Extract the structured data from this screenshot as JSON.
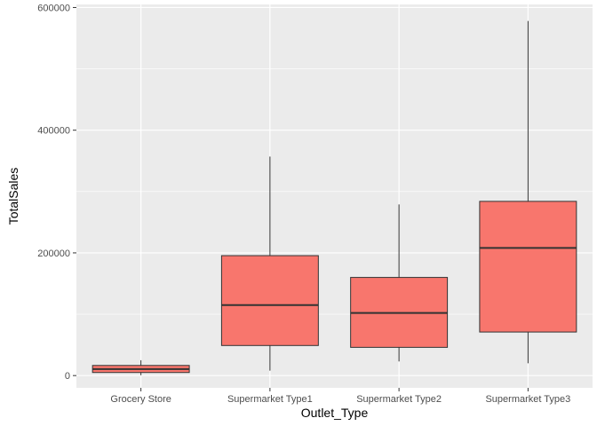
{
  "chart_data": {
    "type": "boxplot",
    "title": "",
    "xlabel": "Outlet_Type",
    "ylabel": "TotalSales",
    "ylim": [
      -20000,
      605000
    ],
    "yticks": [
      0,
      200000,
      400000,
      600000
    ],
    "ytick_labels": [
      "0",
      "200000",
      "400000",
      "600000"
    ],
    "grid": true,
    "categories": [
      "Grocery Store",
      "Supermarket Type1",
      "Supermarket Type2",
      "Supermarket Type3"
    ],
    "boxes": [
      {
        "category": "Grocery Store",
        "whisker_low": 500,
        "q1": 5000,
        "median": 10500,
        "q3": 16500,
        "whisker_high": 25000
      },
      {
        "category": "Supermarket Type1",
        "whisker_low": 8000,
        "q1": 49000,
        "median": 115000,
        "q3": 195500,
        "whisker_high": 357000
      },
      {
        "category": "Supermarket Type2",
        "whisker_low": 23000,
        "q1": 46000,
        "median": 102000,
        "q3": 160000,
        "whisker_high": 279000
      },
      {
        "category": "Supermarket Type3",
        "whisker_low": 20000,
        "q1": 71000,
        "median": 208000,
        "q3": 284000,
        "whisker_high": 578000
      }
    ],
    "colors": {
      "panel_background": "#ebebeb",
      "grid_major": "#ffffff",
      "box_fill": "#f8766d",
      "box_stroke": "#333333"
    }
  }
}
